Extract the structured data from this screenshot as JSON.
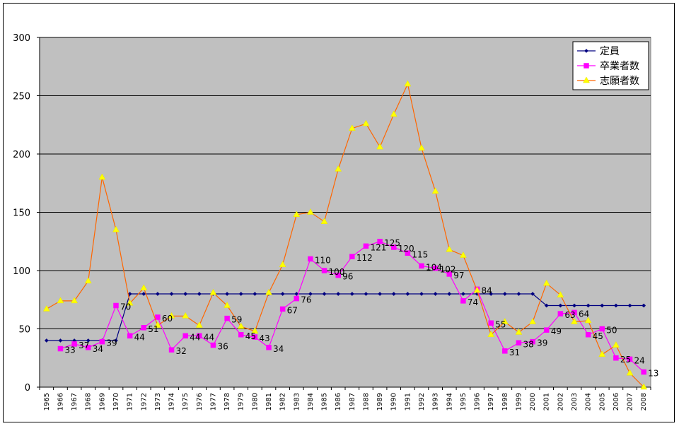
{
  "chart_data": {
    "type": "line",
    "title": "",
    "xlabel": "",
    "ylabel": "",
    "ylim": [
      0,
      300
    ],
    "yticks": [
      0,
      50,
      100,
      150,
      200,
      250,
      300
    ],
    "grid": "horizontal",
    "legend_position": "top-right",
    "x": [
      1965,
      1966,
      1967,
      1968,
      1969,
      1970,
      1971,
      1972,
      1973,
      1974,
      1975,
      1976,
      1977,
      1978,
      1979,
      1980,
      1981,
      1982,
      1983,
      1984,
      1985,
      1986,
      1987,
      1988,
      1989,
      1990,
      1991,
      1992,
      1993,
      1994,
      1995,
      1996,
      1997,
      1998,
      1999,
      2000,
      2001,
      2002,
      2003,
      2004,
      2005,
      2006,
      2007,
      2008
    ],
    "series": [
      {
        "name": "定員",
        "color": "#000080",
        "marker": "diamond",
        "values": [
          40,
          40,
          40,
          40,
          40,
          40,
          80,
          80,
          80,
          80,
          80,
          80,
          80,
          80,
          80,
          80,
          80,
          80,
          80,
          80,
          80,
          80,
          80,
          80,
          80,
          80,
          80,
          80,
          80,
          80,
          80,
          80,
          80,
          80,
          80,
          80,
          70,
          70,
          70,
          70,
          70,
          70,
          70,
          70
        ],
        "labels": []
      },
      {
        "name": "卒業者数",
        "color": "#ff00ff",
        "marker": "square",
        "values": [
          null,
          33,
          37,
          34,
          39,
          70,
          44,
          51,
          60,
          32,
          44,
          44,
          36,
          59,
          45,
          43,
          34,
          67,
          76,
          110,
          100,
          96,
          112,
          121,
          125,
          120,
          115,
          104,
          102,
          97,
          74,
          84,
          55,
          31,
          38,
          39,
          49,
          63,
          64,
          45,
          50,
          25,
          24,
          13
        ],
        "labels": [
          "",
          "33",
          "37",
          "34",
          "39",
          "70",
          "44",
          "51",
          "60",
          "32",
          "44",
          "44",
          "36",
          "59",
          "45",
          "43",
          "34",
          "67",
          "76",
          "110",
          "100",
          "96",
          "112",
          "121",
          "125",
          "120",
          "115",
          "104",
          "102",
          "97",
          "74",
          "84",
          "55",
          "31",
          "38",
          "39",
          "49",
          "63",
          "64",
          "45",
          "50",
          "25",
          "24",
          "13"
        ]
      },
      {
        "name": "志願者数",
        "color": "#ff6600",
        "markerColor": "#ffff00",
        "marker": "triangle",
        "values": [
          67,
          74,
          74,
          91,
          180,
          135,
          72,
          85,
          53,
          61,
          61,
          53,
          81,
          70,
          52,
          48,
          81,
          105,
          148,
          150,
          142,
          187,
          222,
          226,
          206,
          234,
          260,
          205,
          168,
          118,
          113,
          83,
          45,
          56,
          47,
          56,
          89,
          79,
          56,
          57,
          28,
          36,
          12,
          0
        ],
        "labels": []
      }
    ]
  },
  "colors": {
    "plot_background": "#c0c0c0",
    "gridline": "#000000"
  }
}
